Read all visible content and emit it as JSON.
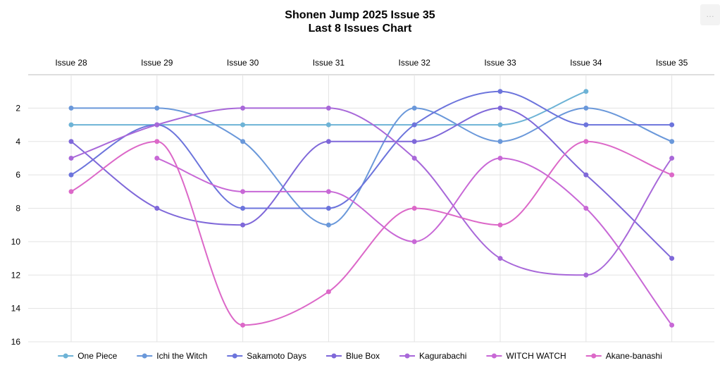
{
  "menu": {
    "icon": "ellipsis-icon",
    "label": "…"
  },
  "chart_data": {
    "type": "line",
    "title": [
      "Shonen Jump 2025 Issue 35",
      "Last 8 Issues Chart"
    ],
    "xlabel": "",
    "ylabel": "",
    "x_axis_position": "top",
    "categories": [
      "Issue 28",
      "Issue 29",
      "Issue 30",
      "Issue 31",
      "Issue 32",
      "Issue 33",
      "Issue 34",
      "Issue 35"
    ],
    "y_reversed": true,
    "ylim": [
      0,
      16
    ],
    "yticks": [
      2,
      4,
      6,
      8,
      10,
      12,
      14,
      16
    ],
    "grid": true,
    "curve": "smooth",
    "legend_position": "bottom",
    "series": [
      {
        "name": "One Piece",
        "color": "#6db3d6",
        "values": [
          3,
          3,
          3,
          3,
          3,
          3,
          1,
          null
        ]
      },
      {
        "name": "Ichi the Witch",
        "color": "#6a98da",
        "values": [
          2,
          2,
          4,
          9,
          2,
          4,
          2,
          4
        ]
      },
      {
        "name": "Sakamoto Days",
        "color": "#6c74dc",
        "values": [
          6,
          3,
          8,
          8,
          3,
          1,
          3,
          3
        ]
      },
      {
        "name": "Blue Box",
        "color": "#7f68d9",
        "values": [
          4,
          8,
          9,
          4,
          4,
          2,
          6,
          11
        ]
      },
      {
        "name": "Kagurabachi",
        "color": "#a868d9",
        "values": [
          5,
          3,
          2,
          2,
          5,
          11,
          12,
          5
        ]
      },
      {
        "name": "WITCH WATCH",
        "color": "#c868d6",
        "values": [
          null,
          5,
          7,
          7,
          10,
          5,
          8,
          15
        ]
      },
      {
        "name": "Akane-banashi",
        "color": "#dc68c8",
        "values": [
          7,
          4,
          15,
          13,
          8,
          9,
          4,
          6
        ]
      }
    ]
  }
}
